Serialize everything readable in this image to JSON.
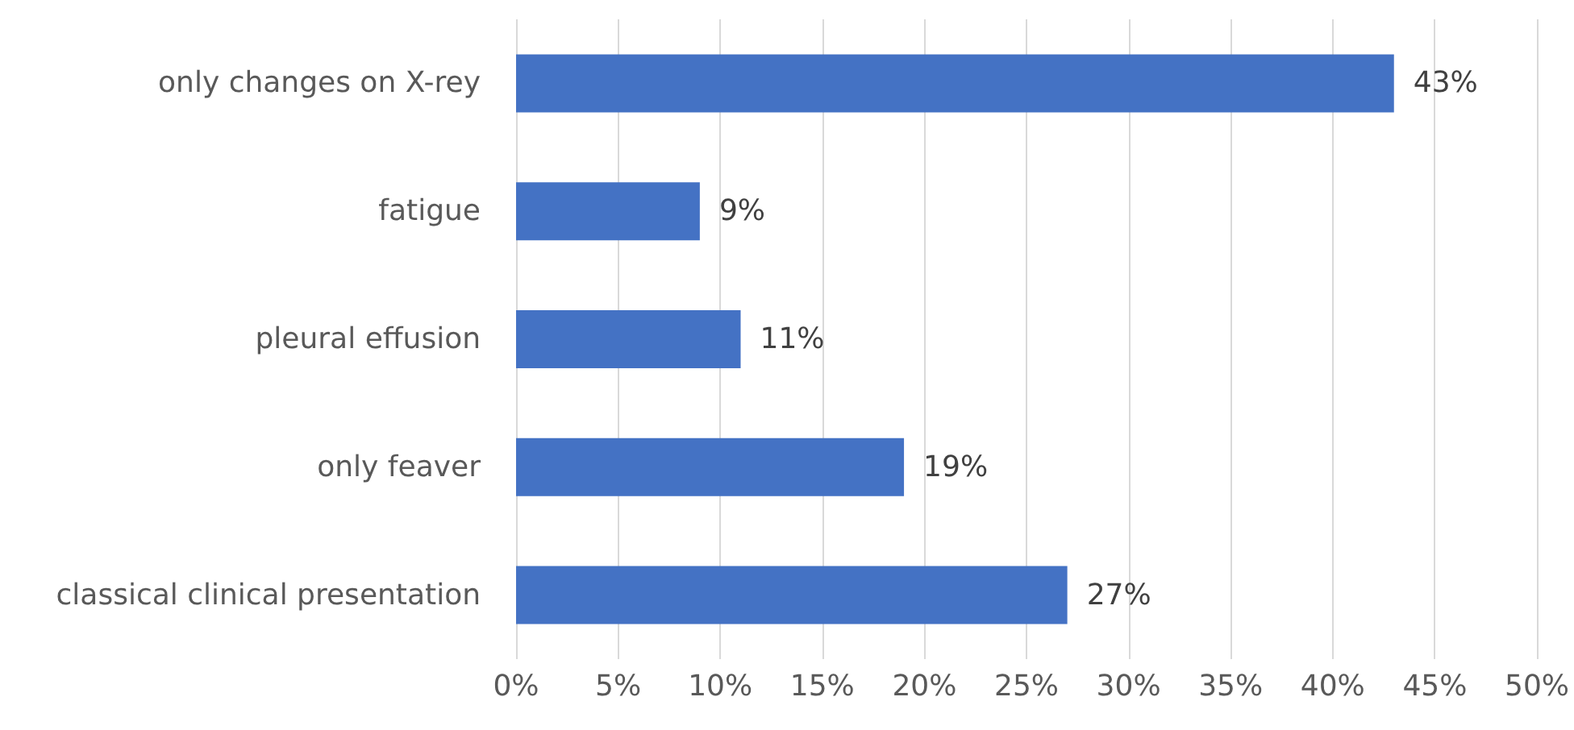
{
  "chart_data": {
    "type": "bar",
    "orientation": "horizontal",
    "categories": [
      "only changes on X-rey",
      "fatigue",
      "pleural effusion",
      "only feaver",
      "classical clinical presentation"
    ],
    "values": [
      43,
      9,
      11,
      19,
      27
    ],
    "value_labels": [
      "43%",
      "9%",
      "11%",
      "19%",
      "27%"
    ],
    "color": "#4472c4",
    "xlim": [
      0,
      50
    ],
    "xticks": [
      {
        "value": 0,
        "label": "0%"
      },
      {
        "value": 5,
        "label": "5%"
      },
      {
        "value": 10,
        "label": "10%"
      },
      {
        "value": 15,
        "label": "15%"
      },
      {
        "value": 20,
        "label": "20%"
      },
      {
        "value": 25,
        "label": "25%"
      },
      {
        "value": 30,
        "label": "30%"
      },
      {
        "value": 35,
        "label": "35%"
      },
      {
        "value": 40,
        "label": "40%"
      },
      {
        "value": 45,
        "label": "45%"
      },
      {
        "value": 50,
        "label": "50%"
      }
    ],
    "grid": "x"
  }
}
